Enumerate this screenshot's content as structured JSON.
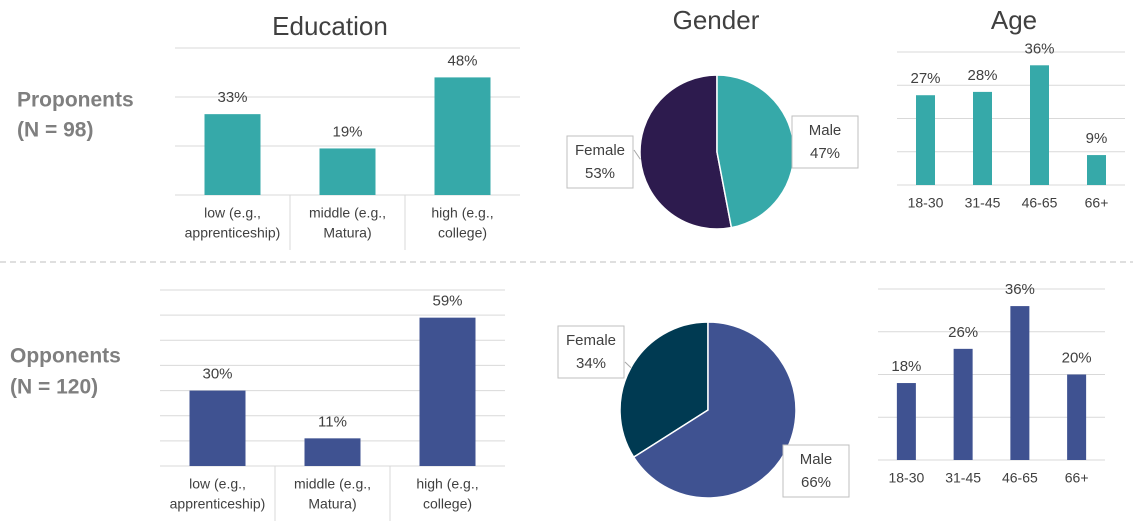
{
  "columns": [
    "Education",
    "Gender",
    "Age"
  ],
  "rows": [
    [
      "Proponents",
      "(N = 98)"
    ],
    [
      "Opponents",
      "(N = 120)"
    ]
  ],
  "chart_data": [
    {
      "type": "bar",
      "categories": [
        [
          "low (e.g.,",
          "apprenticeship)"
        ],
        [
          "middle (e.g.,",
          "Matura)"
        ],
        [
          "high (e.g.,",
          "college)"
        ]
      ],
      "values": [
        33,
        19,
        48
      ],
      "value_labels": [
        "33%",
        "19%",
        "48%"
      ],
      "color": "#36a9a9",
      "ylim": [
        0,
        60
      ],
      "yticks": [
        0,
        20,
        40,
        60
      ],
      "grid": true
    },
    {
      "type": "pie",
      "categories": [
        "Female",
        "Male"
      ],
      "values": [
        53,
        47
      ],
      "value_labels": [
        "53%",
        "47%"
      ],
      "colors": [
        "#2d1b4e",
        "#36a9a9"
      ]
    },
    {
      "type": "bar",
      "categories": [
        [
          "18-30"
        ],
        [
          "31-45"
        ],
        [
          "46-65"
        ],
        [
          "66+"
        ]
      ],
      "values": [
        27,
        28,
        36,
        9
      ],
      "value_labels": [
        "27%",
        "28%",
        "36%",
        "9%"
      ],
      "color": "#36a9a9",
      "ylim": [
        0,
        40
      ],
      "yticks": [
        0,
        10,
        20,
        30,
        40
      ],
      "grid": true
    },
    {
      "type": "bar",
      "categories": [
        [
          "low (e.g.,",
          "apprenticeship)"
        ],
        [
          "middle (e.g.,",
          "Matura)"
        ],
        [
          "high (e.g.,",
          "college)"
        ]
      ],
      "values": [
        30,
        11,
        59
      ],
      "value_labels": [
        "30%",
        "11%",
        "59%"
      ],
      "color": "#3f5291",
      "ylim": [
        0,
        70
      ],
      "yticks": [
        0,
        10,
        20,
        30,
        40,
        50,
        60,
        70
      ],
      "grid": true
    },
    {
      "type": "pie",
      "categories": [
        "Female",
        "Male"
      ],
      "values": [
        34,
        66
      ],
      "value_labels": [
        "34%",
        "66%"
      ],
      "colors": [
        "#003a52",
        "#3f5291"
      ]
    },
    {
      "type": "bar",
      "categories": [
        [
          "18-30"
        ],
        [
          "31-45"
        ],
        [
          "46-65"
        ],
        [
          "66+"
        ]
      ],
      "values": [
        18,
        26,
        36,
        20
      ],
      "value_labels": [
        "18%",
        "26%",
        "36%",
        "20%"
      ],
      "color": "#3f5291",
      "ylim": [
        0,
        40
      ],
      "yticks": [
        0,
        10,
        20,
        30,
        40
      ],
      "grid": true
    }
  ]
}
